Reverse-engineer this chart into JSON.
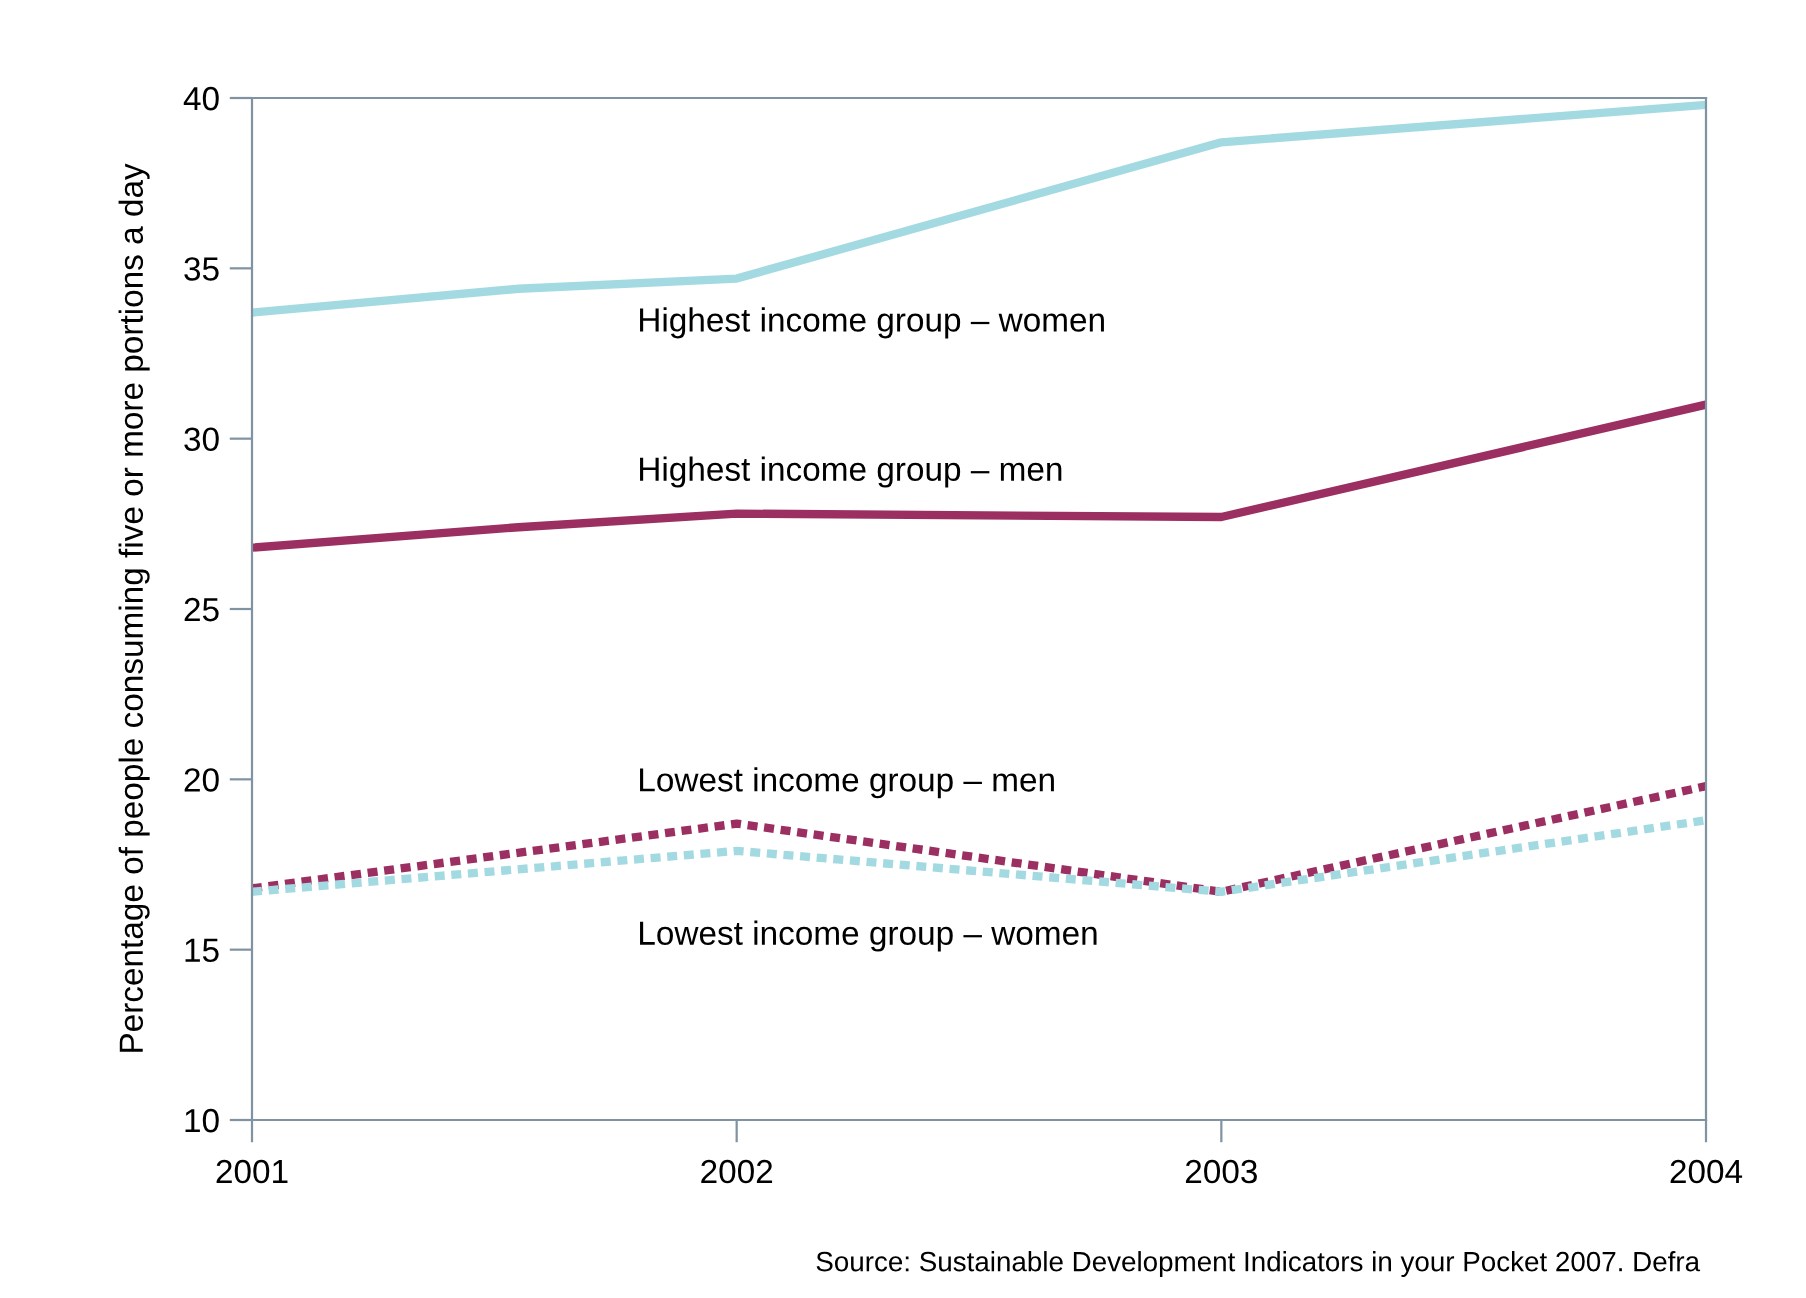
{
  "chart_data": {
    "type": "line",
    "ylabel": "Percentage of people consuming five or more portions a day",
    "xlim": [
      2001,
      2004
    ],
    "xticks": [
      2001,
      2002,
      2003,
      2004
    ],
    "ylim": [
      10,
      40
    ],
    "yticks": [
      10,
      15,
      20,
      25,
      30,
      35,
      40
    ],
    "grid": false,
    "legend": false,
    "series": [
      {
        "name": "Highest income group – women",
        "color": "#a3dae2",
        "line_style": "solid",
        "x": [
          2001,
          2001.55,
          2002,
          2003,
          2004
        ],
        "values": [
          33.7,
          34.4,
          34.7,
          38.7,
          39.8
        ]
      },
      {
        "name": "Highest income group – men",
        "color": "#9b2f61",
        "line_style": "solid",
        "x": [
          2001,
          2001.55,
          2002,
          2003,
          2004
        ],
        "values": [
          26.8,
          27.4,
          27.8,
          27.7,
          31.0
        ]
      },
      {
        "name": "Lowest income group – men",
        "color": "#9b2f61",
        "line_style": "dotted",
        "x": [
          2001,
          2002,
          2003,
          2004
        ],
        "values": [
          16.8,
          18.7,
          16.7,
          19.8
        ]
      },
      {
        "name": "Lowest income group – women",
        "color": "#a3dae2",
        "line_style": "dotted",
        "x": [
          2001,
          2002,
          2003,
          2004
        ],
        "values": [
          16.7,
          17.9,
          16.7,
          18.8
        ]
      }
    ],
    "annotations": [
      "Source: Sustainable Development Indicators in your Pocket 2007. Defra"
    ]
  }
}
